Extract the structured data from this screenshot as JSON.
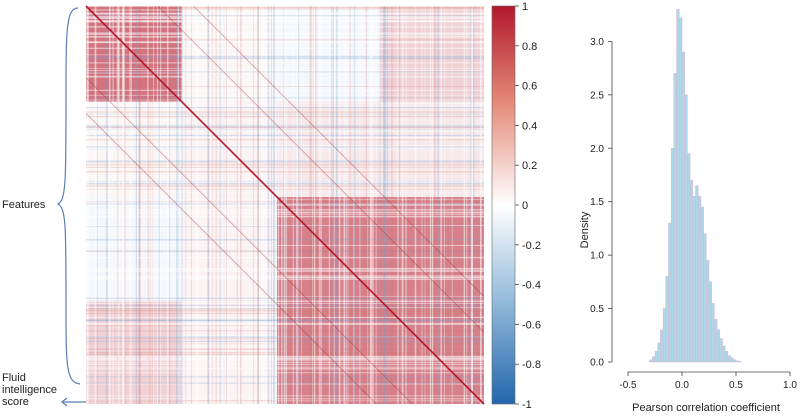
{
  "chart_data": [
    {
      "type": "heatmap",
      "row_labels": {
        "features": "Features",
        "fluid": [
          "Fluid",
          "intelligence",
          "score"
        ]
      },
      "colorbar": {
        "ticks": [
          "1",
          "0.8",
          "0.6",
          "0.4",
          "0.2",
          "0",
          "-0.2",
          "-0.4",
          "-0.6",
          "-0.8",
          "-1"
        ],
        "range": [
          -1,
          1
        ],
        "colors": {
          "high": "#b2182b",
          "mid": "#ffffff",
          "low": "#2166ac"
        }
      },
      "blocks": [
        {
          "rows": [
            0,
            0.24
          ],
          "cols": [
            0,
            0.24
          ],
          "value": 0.6
        },
        {
          "rows": [
            0.24,
            0.48
          ],
          "cols": [
            0.24,
            0.48
          ],
          "value": 0.05
        },
        {
          "rows": [
            0.48,
            1.0
          ],
          "cols": [
            0.48,
            1.0
          ],
          "value": 0.55
        },
        {
          "rows": [
            0,
            0.24
          ],
          "cols": [
            0.74,
            1.0
          ],
          "value": 0.2
        },
        {
          "rows": [
            0.74,
            1.0
          ],
          "cols": [
            0,
            0.24
          ],
          "value": 0.2
        },
        {
          "rows": [
            0,
            0.24
          ],
          "cols": [
            0.48,
            0.74
          ],
          "value": -0.05
        },
        {
          "rows": [
            0.48,
            0.74
          ],
          "cols": [
            0,
            0.24
          ],
          "value": -0.05
        },
        {
          "rows": [
            0.24,
            0.48
          ],
          "cols": [
            0.48,
            1.0
          ],
          "value": 0.1
        },
        {
          "rows": [
            0.48,
            1.0
          ],
          "cols": [
            0.24,
            0.48
          ],
          "value": 0.05
        }
      ]
    },
    {
      "type": "bar",
      "subtype": "histogram",
      "xlabel": "Pearson correlation coefficient",
      "ylabel": "Density",
      "xlim": [
        -0.5,
        1.0
      ],
      "ylim": [
        0,
        3.2
      ],
      "x_ticks": [
        "-0.5",
        "0.0",
        "0.5",
        "1.0"
      ],
      "y_ticks": [
        "0.0",
        "0.5",
        "1.0",
        "1.5",
        "2.0",
        "2.5",
        "3.0"
      ],
      "bin_width": 0.025,
      "bin_start": -0.3,
      "values": [
        0.02,
        0.05,
        0.1,
        0.18,
        0.3,
        0.5,
        0.8,
        1.3,
        2.0,
        2.7,
        3.3,
        3.22,
        2.9,
        2.5,
        1.95,
        1.7,
        1.55,
        1.65,
        1.55,
        1.45,
        1.2,
        0.95,
        0.75,
        0.55,
        0.4,
        0.3,
        0.22,
        0.15,
        0.1,
        0.06,
        0.04,
        0.02,
        0.01,
        0.005
      ],
      "bar_color": "#add8e6",
      "edge_color": "#d8b4d8"
    }
  ]
}
